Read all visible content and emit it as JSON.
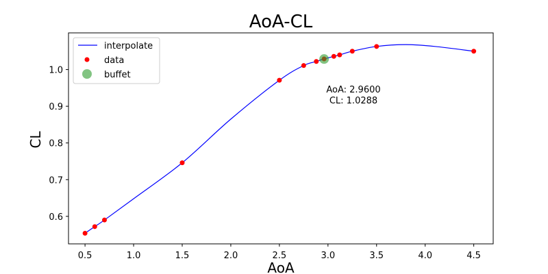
{
  "chart_data": {
    "type": "line",
    "title": "AoA-CL",
    "xlabel": "AoA",
    "ylabel": "CL",
    "xlim": [
      0.33,
      4.7
    ],
    "ylim": [
      0.525,
      1.1
    ],
    "xticks": [
      0.5,
      1.0,
      1.5,
      2.0,
      2.5,
      3.0,
      3.5,
      4.0,
      4.5
    ],
    "xtick_labels": [
      "0.5",
      "1.0",
      "1.5",
      "2.0",
      "2.5",
      "3.0",
      "3.5",
      "4.0",
      "4.5"
    ],
    "yticks": [
      0.6,
      0.7,
      0.8,
      0.9,
      1.0
    ],
    "ytick_labels": [
      "0.6",
      "0.7",
      "0.8",
      "0.9",
      "1.0"
    ],
    "grid": false,
    "legend_position": "top-left",
    "series": [
      {
        "name": "interpolate",
        "type": "line",
        "color": "#0000ff",
        "x": [
          0.5,
          0.6,
          0.7,
          1.0,
          1.5,
          2.0,
          2.5,
          2.75,
          2.88,
          2.96,
          3.06,
          3.12,
          3.25,
          3.5,
          3.8,
          4.1,
          4.5
        ],
        "y": [
          0.554,
          0.572,
          0.59,
          0.648,
          0.746,
          0.865,
          0.971,
          1.011,
          1.022,
          1.029,
          1.036,
          1.04,
          1.05,
          1.063,
          1.068,
          1.063,
          1.05
        ]
      },
      {
        "name": "data",
        "type": "scatter",
        "color": "#ff0000",
        "x": [
          0.5,
          0.6,
          0.7,
          1.5,
          2.5,
          2.75,
          2.88,
          2.96,
          3.06,
          3.12,
          3.25,
          3.5,
          4.5
        ],
        "y": [
          0.554,
          0.572,
          0.59,
          0.746,
          0.971,
          1.011,
          1.022,
          1.029,
          1.036,
          1.04,
          1.05,
          1.063,
          1.05
        ]
      },
      {
        "name": "buffet",
        "type": "scatter",
        "color": "#2e9c2e",
        "x": [
          2.96
        ],
        "y": [
          1.0288
        ]
      }
    ],
    "annotation": {
      "line1": "AoA: 2.9600",
      "line2": "CL: 1.0288"
    }
  }
}
